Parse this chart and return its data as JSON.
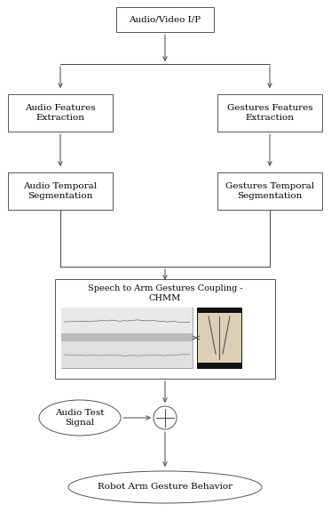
{
  "bg_color": "#ffffff",
  "box_color": "#ffffff",
  "box_edge": "#555555",
  "arrow_color": "#444444",
  "title_top": "Audio/Video I/P",
  "box_audio_feat": "Audio Features\nExtraction",
  "box_gesture_feat": "Gestures Features\nExtraction",
  "box_audio_temp": "Audio Temporal\nSegmentation",
  "box_gesture_temp": "Gestures Temporal\nSegmentation",
  "box_chmm_title": "Speech to Arm Gestures Coupling -\nCHMM",
  "ellipse_audio_test": "Audio Test\nSignal",
  "ellipse_robot": "Robot Arm Gesture Behavior",
  "font_size": 7.5,
  "font_family": "DejaVu Serif"
}
